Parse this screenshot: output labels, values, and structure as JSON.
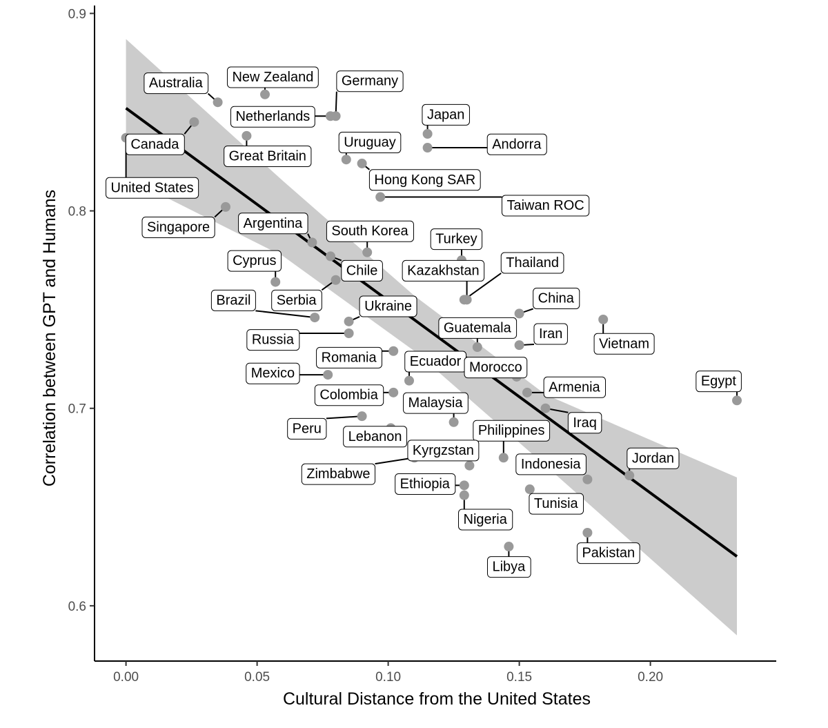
{
  "chart_data": {
    "type": "scatter",
    "title": "",
    "xlabel": "Cultural Distance from the United States",
    "ylabel": "Correlation between GPT and Humans",
    "xlim": [
      -0.012,
      0.248
    ],
    "ylim": [
      0.572,
      0.904
    ],
    "x_ticks": [
      0.0,
      0.05,
      0.1,
      0.15,
      0.2
    ],
    "x_tick_labels": [
      "0.00",
      "0.05",
      "0.10",
      "0.15",
      "0.20"
    ],
    "y_ticks": [
      0.6,
      0.7,
      0.8,
      0.9
    ],
    "y_tick_labels": [
      "0.6",
      "0.7",
      "0.8",
      "0.9"
    ],
    "grid": false,
    "legend": "none",
    "colors": {
      "point": "#999999",
      "fit_line": "#000000",
      "ci_band": "#cccccc"
    },
    "fit": {
      "x": [
        0.0,
        0.233
      ],
      "y": [
        0.852,
        0.625
      ]
    },
    "ci_upper": [
      [
        0.0,
        0.887
      ],
      [
        0.06,
        0.815
      ],
      [
        0.11,
        0.757
      ],
      [
        0.16,
        0.707
      ],
      [
        0.233,
        0.665
      ]
    ],
    "ci_lower": [
      [
        0.0,
        0.817
      ],
      [
        0.06,
        0.777
      ],
      [
        0.11,
        0.729
      ],
      [
        0.16,
        0.671
      ],
      [
        0.233,
        0.585
      ]
    ],
    "points": [
      {
        "name": "United States",
        "x": 0.0,
        "y": 0.837,
        "lx": 0.01,
        "ly": 0.812
      },
      {
        "name": "Australia",
        "x": 0.035,
        "y": 0.855,
        "lx": 0.019,
        "ly": 0.865
      },
      {
        "name": "New Zealand",
        "x": 0.053,
        "y": 0.859,
        "lx": 0.056,
        "ly": 0.868
      },
      {
        "name": "Germany",
        "x": 0.08,
        "y": 0.848,
        "lx": 0.093,
        "ly": 0.866
      },
      {
        "name": "Netherlands",
        "x": 0.078,
        "y": 0.848,
        "lx": 0.056,
        "ly": 0.848
      },
      {
        "name": "Canada",
        "x": 0.026,
        "y": 0.845,
        "lx": 0.011,
        "ly": 0.834
      },
      {
        "name": "Great Britain",
        "x": 0.046,
        "y": 0.838,
        "lx": 0.054,
        "ly": 0.828
      },
      {
        "name": "Japan",
        "x": 0.115,
        "y": 0.839,
        "lx": 0.122,
        "ly": 0.849
      },
      {
        "name": "Uruguay",
        "x": 0.084,
        "y": 0.826,
        "lx": 0.093,
        "ly": 0.835
      },
      {
        "name": "Andorra",
        "x": 0.115,
        "y": 0.832,
        "lx": 0.149,
        "ly": 0.834
      },
      {
        "name": "Hong Kong SAR",
        "x": 0.09,
        "y": 0.824,
        "lx": 0.114,
        "ly": 0.816
      },
      {
        "name": "Taiwan ROC",
        "x": 0.097,
        "y": 0.807,
        "lx": 0.16,
        "ly": 0.803
      },
      {
        "name": "Singapore",
        "x": 0.038,
        "y": 0.802,
        "lx": 0.02,
        "ly": 0.792
      },
      {
        "name": "Argentina",
        "x": 0.071,
        "y": 0.784,
        "lx": 0.056,
        "ly": 0.794
      },
      {
        "name": "South Korea",
        "x": 0.092,
        "y": 0.779,
        "lx": 0.093,
        "ly": 0.79
      },
      {
        "name": "Chile",
        "x": 0.078,
        "y": 0.777,
        "lx": 0.09,
        "ly": 0.77
      },
      {
        "name": "Turkey",
        "x": 0.128,
        "y": 0.775,
        "lx": 0.126,
        "ly": 0.786
      },
      {
        "name": "Kazakhstan",
        "x": 0.13,
        "y": 0.755,
        "lx": 0.121,
        "ly": 0.77
      },
      {
        "name": "Thailand",
        "x": 0.129,
        "y": 0.755,
        "lx": 0.155,
        "ly": 0.774
      },
      {
        "name": "Cyprus",
        "x": 0.057,
        "y": 0.764,
        "lx": 0.049,
        "ly": 0.775
      },
      {
        "name": "Serbia",
        "x": 0.08,
        "y": 0.765,
        "lx": 0.065,
        "ly": 0.755
      },
      {
        "name": "Brazil",
        "x": 0.072,
        "y": 0.746,
        "lx": 0.041,
        "ly": 0.755
      },
      {
        "name": "Ukraine",
        "x": 0.085,
        "y": 0.744,
        "lx": 0.1,
        "ly": 0.752
      },
      {
        "name": "China",
        "x": 0.15,
        "y": 0.748,
        "lx": 0.164,
        "ly": 0.756
      },
      {
        "name": "Guatemala",
        "x": 0.134,
        "y": 0.731,
        "lx": 0.134,
        "ly": 0.741
      },
      {
        "name": "Iran",
        "x": 0.15,
        "y": 0.732,
        "lx": 0.162,
        "ly": 0.738
      },
      {
        "name": "Vietnam",
        "x": 0.182,
        "y": 0.745,
        "lx": 0.19,
        "ly": 0.733
      },
      {
        "name": "Russia",
        "x": 0.085,
        "y": 0.738,
        "lx": 0.056,
        "ly": 0.735
      },
      {
        "name": "Romania",
        "x": 0.102,
        "y": 0.729,
        "lx": 0.085,
        "ly": 0.726
      },
      {
        "name": "Ecuador",
        "x": 0.108,
        "y": 0.714,
        "lx": 0.118,
        "ly": 0.724
      },
      {
        "name": "Morocco",
        "x": 0.149,
        "y": 0.716,
        "lx": 0.141,
        "ly": 0.721
      },
      {
        "name": "Mexico",
        "x": 0.077,
        "y": 0.717,
        "lx": 0.056,
        "ly": 0.718
      },
      {
        "name": "Egypt",
        "x": 0.233,
        "y": 0.704,
        "lx": 0.226,
        "ly": 0.714
      },
      {
        "name": "Armenia",
        "x": 0.153,
        "y": 0.708,
        "lx": 0.171,
        "ly": 0.711
      },
      {
        "name": "Colombia",
        "x": 0.102,
        "y": 0.708,
        "lx": 0.085,
        "ly": 0.707
      },
      {
        "name": "Malaysia",
        "x": 0.125,
        "y": 0.693,
        "lx": 0.118,
        "ly": 0.703
      },
      {
        "name": "Iraq",
        "x": 0.16,
        "y": 0.7,
        "lx": 0.175,
        "ly": 0.693
      },
      {
        "name": "Peru",
        "x": 0.09,
        "y": 0.696,
        "lx": 0.069,
        "ly": 0.69
      },
      {
        "name": "Lebanon",
        "x": 0.101,
        "y": 0.69,
        "lx": 0.095,
        "ly": 0.686
      },
      {
        "name": "Philippines",
        "x": 0.144,
        "y": 0.675,
        "lx": 0.147,
        "ly": 0.689
      },
      {
        "name": "Kyrgzstan",
        "x": 0.131,
        "y": 0.671,
        "lx": 0.121,
        "ly": 0.679
      },
      {
        "name": "Jordan",
        "x": 0.192,
        "y": 0.666,
        "lx": 0.201,
        "ly": 0.675
      },
      {
        "name": "Zimbabwe",
        "x": 0.11,
        "y": 0.675,
        "lx": 0.081,
        "ly": 0.667
      },
      {
        "name": "Indonesia",
        "x": 0.176,
        "y": 0.664,
        "lx": 0.162,
        "ly": 0.672
      },
      {
        "name": "Ethiopia",
        "x": 0.129,
        "y": 0.661,
        "lx": 0.114,
        "ly": 0.662
      },
      {
        "name": "Tunisia",
        "x": 0.154,
        "y": 0.659,
        "lx": 0.164,
        "ly": 0.652
      },
      {
        "name": "Nigeria",
        "x": 0.129,
        "y": 0.656,
        "lx": 0.137,
        "ly": 0.644
      },
      {
        "name": "Pakistan",
        "x": 0.176,
        "y": 0.637,
        "lx": 0.184,
        "ly": 0.627
      },
      {
        "name": "Libya",
        "x": 0.146,
        "y": 0.63,
        "lx": 0.146,
        "ly": 0.62
      }
    ]
  }
}
